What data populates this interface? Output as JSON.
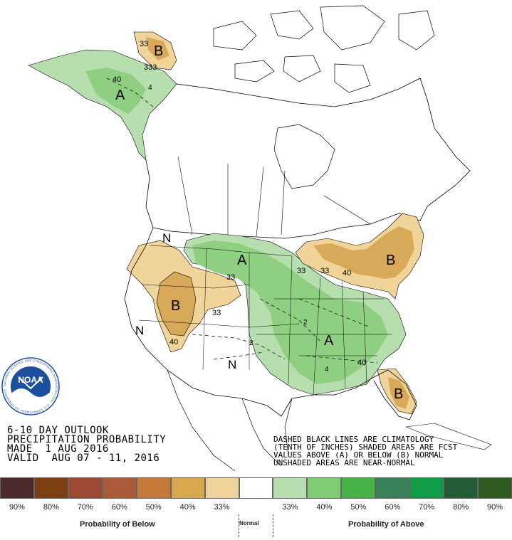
{
  "map": {
    "region_letters": {
      "alaska_above": "A",
      "alaska_below": "B",
      "plains_above": "A",
      "rockies_below": "B",
      "northeast_below": "B",
      "southeast_above": "A",
      "florida_below": "B",
      "northwest_normal": "N",
      "southwest_normal": "N",
      "southern_rockies_normal": "N"
    },
    "contour_labels": {
      "alaska_33a": "33",
      "alaska_33b": "333",
      "alaska_40": "40",
      "plains_33a": "33",
      "rockies_33b": "33",
      "rockies_40": "40",
      "great_lakes_33a": "33",
      "great_lakes_33b": "33",
      "great_lakes_40": "40",
      "southeast_40": "40"
    },
    "climatology_labels": {
      "c1": "2",
      "c2": "2",
      "c3": "4",
      "c4": "4"
    },
    "colors": {
      "below_33": "#f0d49a",
      "below_40": "#d9a95a",
      "above_33": "#b7deae",
      "above_40": "#8fcf82",
      "outline": "#000000",
      "noaa_blue": "#1c4f9c"
    }
  },
  "noaa": {
    "label": "NOAA",
    "ring_text": "NATIONAL OCEANIC AND ATMOSPHERIC ADMINISTRATION · U.S. DEPARTMENT OF COMMERCE"
  },
  "title": {
    "line1": "6-10 DAY OUTLOOK",
    "line2": "PRECIPITATION PROBABILITY",
    "line3": "MADE  1 AUG 2016",
    "line4": "VALID  AUG 07 - 11, 2016"
  },
  "notes": {
    "line1": "DASHED BLACK LINES ARE CLIMATOLOGY",
    "line2": "(TENTH OF INCHES) SHADED AREAS ARE FCST",
    "line3": "VALUES ABOVE (A) OR BELOW (B) NORMAL",
    "line4": "UNSHADED AREAS ARE NEAR-NORMAL"
  },
  "legend": {
    "swatches": [
      {
        "color": "#4a2a2a"
      },
      {
        "color": "#7c3f10"
      },
      {
        "color": "#9c4a36"
      },
      {
        "color": "#ab5b39"
      },
      {
        "color": "#c67a3a"
      },
      {
        "color": "#d9a84e"
      },
      {
        "color": "#efd29a"
      },
      {
        "color": "#ffffff"
      },
      {
        "color": "#b8ddb0"
      },
      {
        "color": "#7fcb73"
      },
      {
        "color": "#47b347"
      },
      {
        "color": "#37805a"
      },
      {
        "color": "#0f9b47"
      },
      {
        "color": "#245c36"
      },
      {
        "color": "#2e5a1f"
      }
    ],
    "ticks": [
      "90%",
      "80%",
      "70%",
      "60%",
      "50%",
      "40%",
      "33%",
      "33%",
      "40%",
      "50%",
      "60%",
      "70%",
      "80%",
      "90%"
    ],
    "below_caption": "Probability of Below",
    "normal_caption": "Normal",
    "above_caption": "Probability of Above"
  }
}
